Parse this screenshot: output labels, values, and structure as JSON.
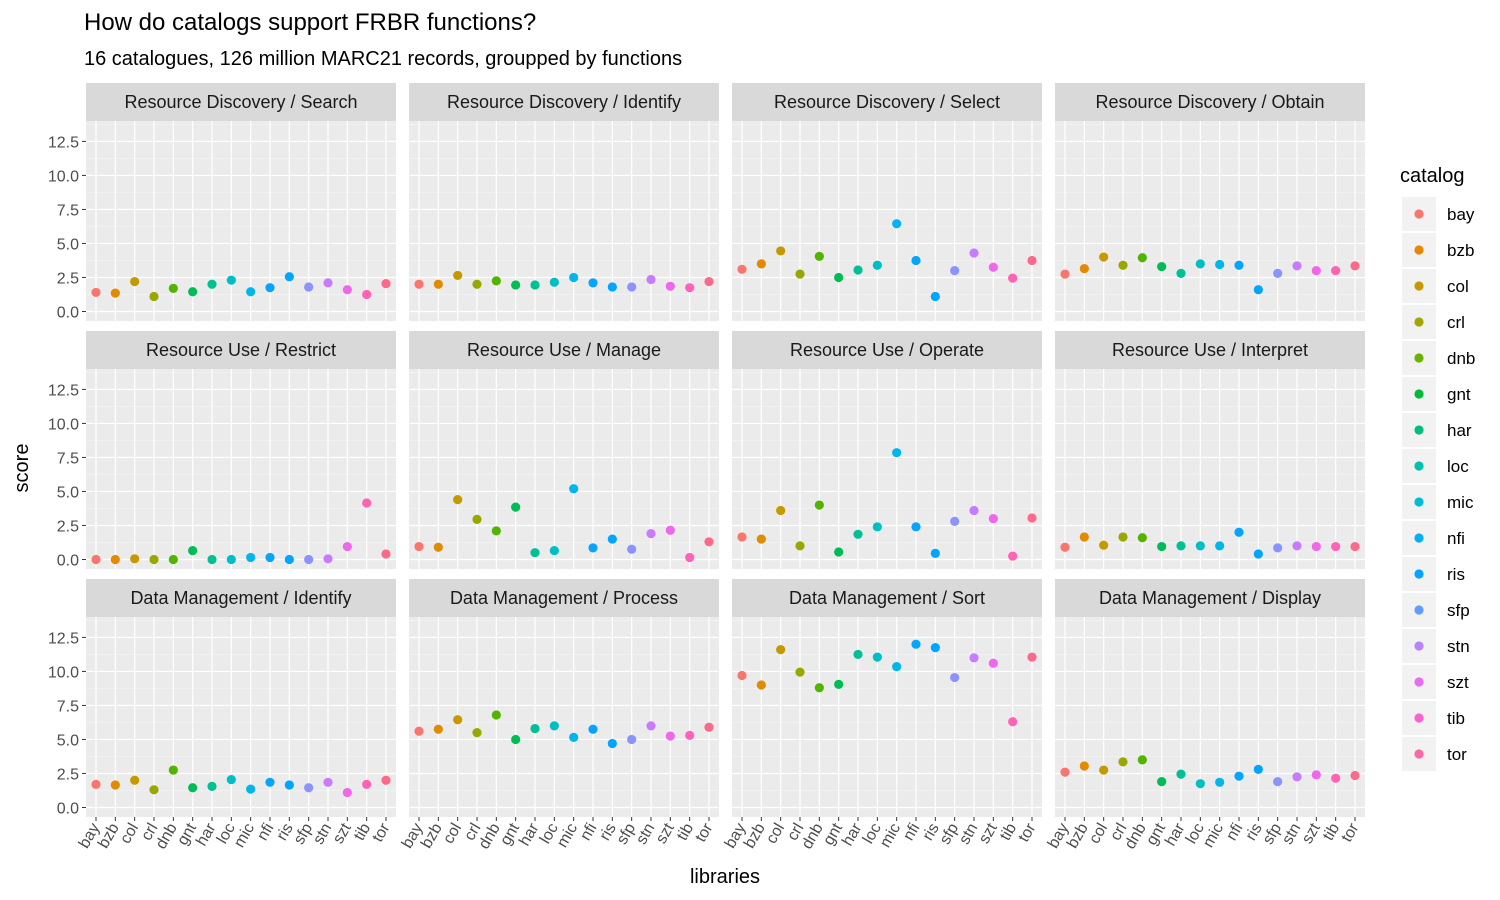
{
  "chart_data": {
    "type": "scatter",
    "title": "How do catalogs support FRBR functions?",
    "subtitle": "16 catalogues, 126 million MARC21 records, groupped by functions",
    "xlabel": "libraries",
    "ylabel": "score",
    "ylim": [
      -0.7,
      14.0
    ],
    "yticks": [
      "0.0",
      "2.5",
      "5.0",
      "7.5",
      "10.0",
      "12.5"
    ],
    "grid": true,
    "legend_position": "right",
    "legend_title": "catalog",
    "categories": [
      "bay",
      "bzb",
      "col",
      "crl",
      "dnb",
      "gnt",
      "har",
      "loc",
      "mic",
      "nfi",
      "ris",
      "sfp",
      "stn",
      "szt",
      "tib",
      "tor"
    ],
    "colors": [
      "#F8766D",
      "#E18A00",
      "#BE9C00",
      "#8CAB00",
      "#24B700",
      "#00BE70",
      "#00C1AB",
      "#00BBDA",
      "#00ACFC",
      "#8B93FF",
      "#D575FE",
      "#F962DD",
      "#FF65AC",
      "#F8766D",
      "#E18A00",
      "#BE9C00"
    ],
    "point_colors": {
      "bay": "#F8766D",
      "bzb": "#E08B00",
      "col": "#C49A00",
      "crl": "#99A800",
      "dnb": "#53B400",
      "gnt": "#00BC56",
      "har": "#00C094",
      "loc": "#00BFC4",
      "mic": "#00B6EB",
      "nfi": "#06A4FF",
      "ris": "#00A5FF",
      "sfp": "#8B93FF",
      "stn": "#C77CFF",
      "szt": "#EF67EB",
      "tib": "#FF63B6",
      "tor": "#FB6A8B"
    },
    "legend_colors": {
      "bay": "#F8766D",
      "bzb": "#E58700",
      "col": "#C99800",
      "crl": "#A3A500",
      "dnb": "#6BB100",
      "gnt": "#00BA38",
      "har": "#00BF7D",
      "loc": "#00C0AF",
      "mic": "#00BCD8",
      "nfi": "#00B0F6",
      "ris": "#00A5FF",
      "sfp": "#619CFF",
      "stn": "#B983FF",
      "szt": "#E76BF3",
      "tib": "#FD61D1",
      "tor": "#FF67A4"
    },
    "panels": [
      {
        "title": "Resource Discovery / Search",
        "values": [
          1.4,
          1.35,
          2.2,
          1.1,
          1.7,
          1.45,
          2.0,
          2.3,
          1.45,
          1.75,
          2.55,
          1.8,
          2.1,
          1.6,
          1.25,
          2.05
        ]
      },
      {
        "title": "Resource Discovery / Identify",
        "values": [
          2.0,
          2.0,
          2.65,
          2.0,
          2.25,
          1.95,
          1.95,
          2.15,
          2.5,
          2.1,
          1.8,
          1.8,
          2.35,
          1.85,
          1.75,
          2.2
        ]
      },
      {
        "title": "Resource Discovery / Select",
        "values": [
          3.1,
          3.5,
          4.45,
          2.75,
          4.05,
          2.5,
          3.05,
          3.4,
          6.45,
          3.75,
          1.1,
          3.0,
          4.3,
          3.25,
          2.45,
          3.75
        ]
      },
      {
        "title": "Resource Discovery / Obtain",
        "values": [
          2.75,
          3.15,
          4.0,
          3.4,
          3.95,
          3.3,
          2.8,
          3.5,
          3.45,
          3.4,
          1.6,
          2.8,
          3.35,
          3.0,
          3.0,
          3.35
        ]
      },
      {
        "title": "Resource Use / Restrict",
        "values": [
          0.0,
          0.0,
          0.05,
          0.0,
          0.0,
          0.65,
          0.0,
          0.0,
          0.15,
          0.15,
          0.0,
          0.0,
          0.05,
          0.95,
          4.15,
          0.4
        ]
      },
      {
        "title": "Resource Use / Manage",
        "values": [
          0.95,
          0.9,
          4.4,
          2.95,
          2.1,
          3.85,
          0.5,
          0.65,
          5.2,
          0.85,
          1.5,
          0.75,
          1.9,
          2.15,
          0.15,
          1.3
        ]
      },
      {
        "title": "Resource Use / Operate",
        "values": [
          1.65,
          1.5,
          3.6,
          1.0,
          4.0,
          0.55,
          1.85,
          2.4,
          7.85,
          2.4,
          0.45,
          2.8,
          3.6,
          3.0,
          0.25,
          3.05
        ]
      },
      {
        "title": "Resource Use / Interpret",
        "values": [
          0.9,
          1.65,
          1.05,
          1.65,
          1.6,
          0.95,
          1.0,
          1.0,
          1.0,
          2.0,
          0.4,
          0.85,
          1.0,
          0.95,
          0.95,
          0.95
        ]
      },
      {
        "title": "Data Management / Identify",
        "values": [
          1.7,
          1.65,
          2.0,
          1.3,
          2.75,
          1.45,
          1.55,
          2.05,
          1.35,
          1.85,
          1.65,
          1.45,
          1.85,
          1.1,
          1.7,
          2.0
        ]
      },
      {
        "title": "Data Management / Process",
        "values": [
          5.6,
          5.75,
          6.45,
          5.5,
          6.8,
          5.0,
          5.8,
          6.0,
          5.15,
          5.75,
          4.7,
          5.0,
          6.0,
          5.25,
          5.3,
          5.9
        ]
      },
      {
        "title": "Data Management / Sort",
        "values": [
          9.7,
          9.0,
          11.6,
          9.95,
          8.8,
          9.05,
          11.25,
          11.05,
          10.35,
          12.0,
          11.75,
          9.55,
          11.0,
          10.6,
          6.3,
          11.05
        ]
      },
      {
        "title": "Data Management / Display",
        "values": [
          2.6,
          3.05,
          2.75,
          3.35,
          3.5,
          1.9,
          2.45,
          1.75,
          1.85,
          2.3,
          2.8,
          1.9,
          2.25,
          2.4,
          2.15,
          2.35
        ]
      }
    ]
  }
}
